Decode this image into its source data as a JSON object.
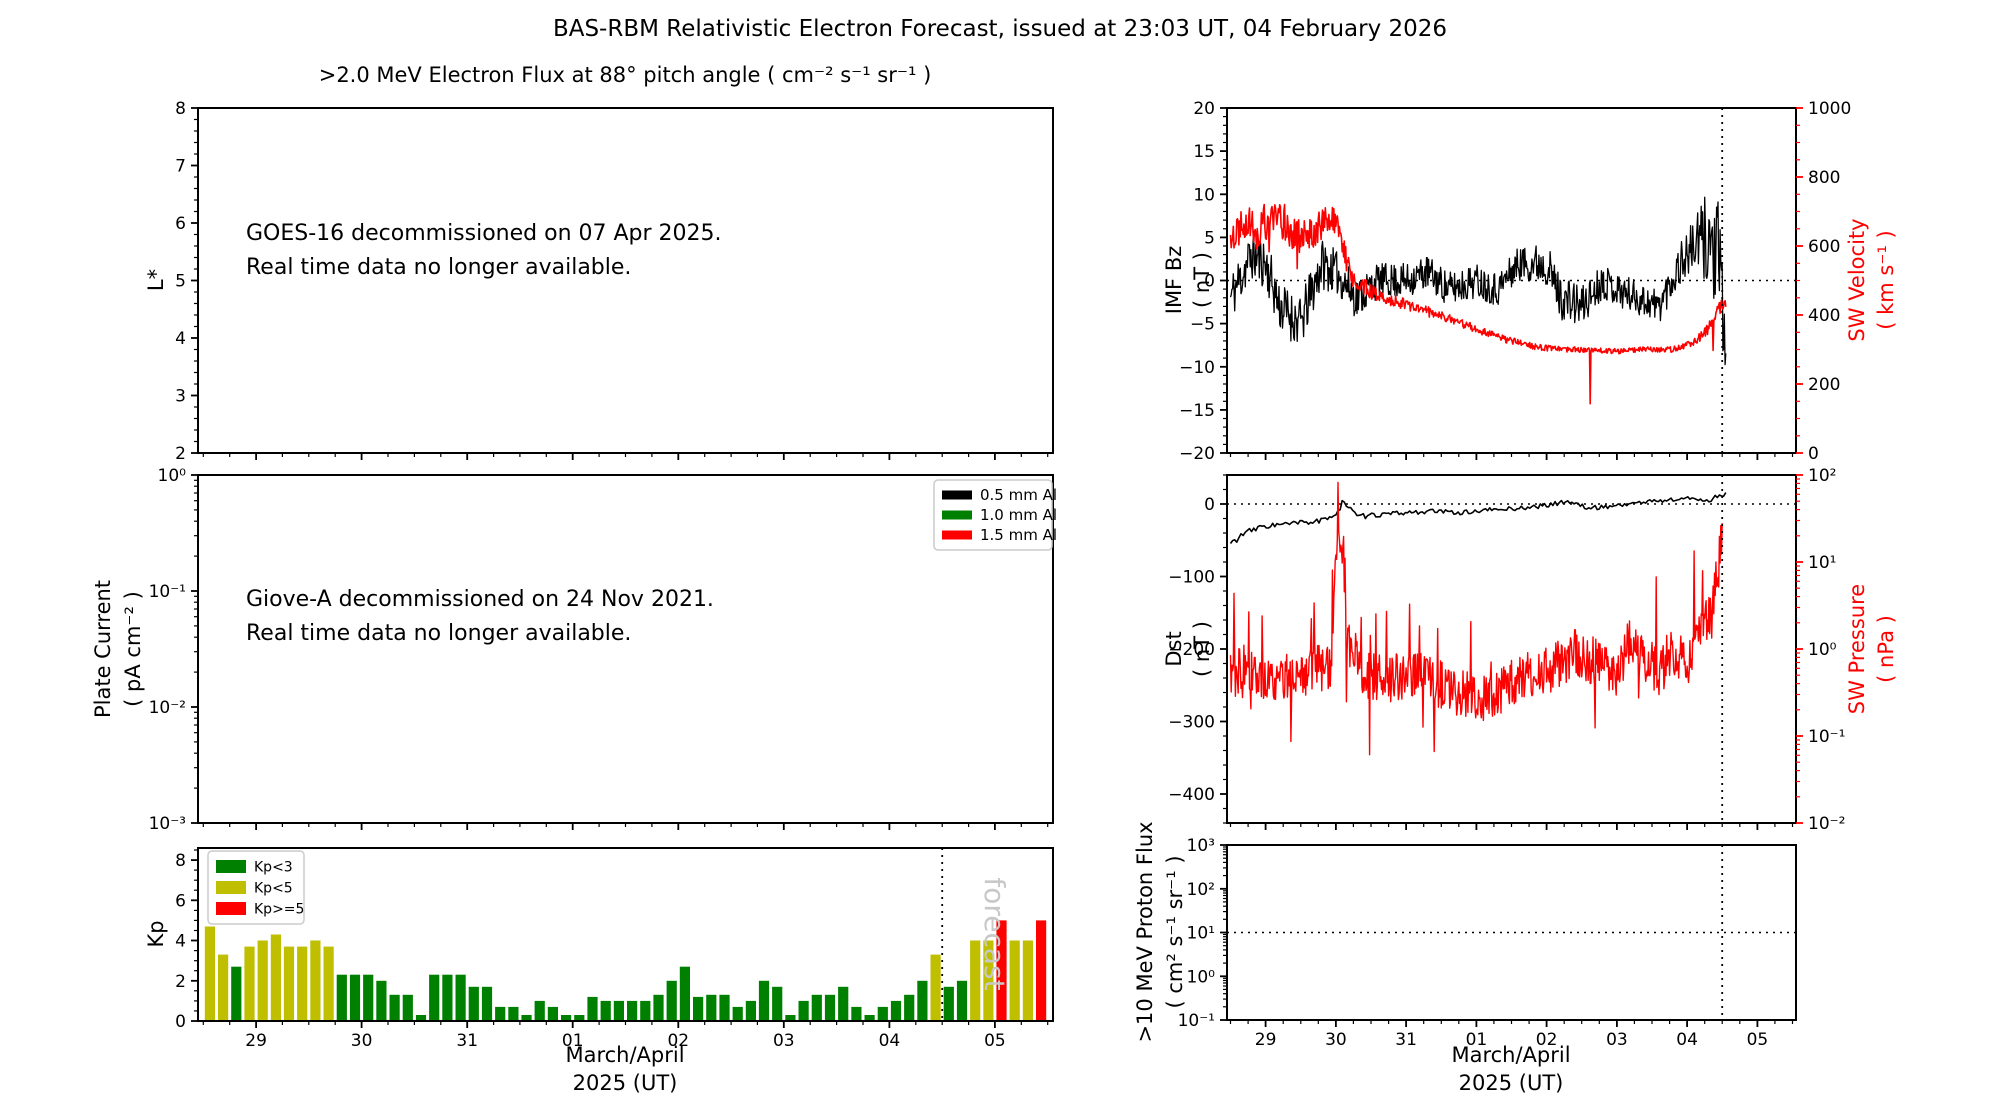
{
  "figure": {
    "title": "BAS-RBM Relativistic Electron Forecast, issued at 23:03 UT, 04 February 2026"
  },
  "colors": {
    "black": "#000000",
    "red": "#ff0000",
    "kp_green": "#008000",
    "kp_yellow": "#bfbf00",
    "kp_red": "#ff0000",
    "watermark_gray": "#c8c8c8"
  },
  "time_axis": {
    "xlim": [
      28.45,
      36.55
    ],
    "tick_values": [
      29,
      30,
      31,
      32,
      33,
      34,
      35,
      36
    ],
    "tick_labels": [
      "29",
      "30",
      "31",
      "01",
      "02",
      "03",
      "04",
      "05"
    ],
    "xlabel_line1": "March/April",
    "xlabel_line2": "2025 (UT)",
    "forecast_time": 35.5
  },
  "chart_data": [
    {
      "id": "electron-flux",
      "type": "line",
      "title": ">2.0 MeV Electron Flux at 88° pitch angle ( cm⁻² s⁻¹ sr⁻¹ )",
      "ylabel": "L*",
      "ylim": [
        2,
        8
      ],
      "yticks": {
        "values": [
          2,
          3,
          4,
          5,
          6,
          7,
          8
        ],
        "labels": [
          "2",
          "3",
          "4",
          "5",
          "6",
          "7",
          "8"
        ]
      },
      "annotation_line1": "GOES-16 decommissioned on 07 Apr 2025.",
      "annotation_line2": "Real time data no longer available.",
      "series": []
    },
    {
      "id": "plate-current",
      "type": "line",
      "ylabel_line1": "Plate Current",
      "ylabel_line2": "( pA cm⁻² )",
      "yscale": "log",
      "ylim": [
        0.001,
        1
      ],
      "yticks": {
        "values": [
          1,
          0.1,
          0.01,
          0.001
        ],
        "labels": [
          "10⁰",
          "10⁻¹",
          "10⁻²",
          "10⁻³"
        ]
      },
      "legend": [
        {
          "label": "0.5 mm Al",
          "color": "#000000"
        },
        {
          "label": "1.0 mm Al",
          "color": "#008000"
        },
        {
          "label": "1.5 mm Al",
          "color": "#ff0000"
        }
      ],
      "annotation_line1": "Giove-A decommissioned on 24 Nov 2021.",
      "annotation_line2": "Real time data no longer available.",
      "series": []
    },
    {
      "id": "kp-index",
      "type": "bar",
      "ylabel": "Kp",
      "ylim": [
        0,
        8.6
      ],
      "yticks": {
        "values": [
          0,
          2,
          4,
          6,
          8
        ],
        "labels": [
          "0",
          "2",
          "4",
          "6",
          "8"
        ]
      },
      "legend": [
        {
          "label": "Kp<3",
          "color": "#008000"
        },
        {
          "label": "Kp<5",
          "color": "#bfbf00"
        },
        {
          "label": "Kp>=5",
          "color": "#ff0000"
        }
      ],
      "thresholds": {
        "green_below": 3,
        "yellow_below": 5
      },
      "forecast_label": "forecast",
      "t_start": 28.5,
      "dt_days": 0.125,
      "values": [
        4.7,
        3.3,
        2.7,
        3.7,
        4.0,
        4.3,
        3.7,
        3.7,
        4.0,
        3.7,
        2.3,
        2.3,
        2.3,
        2.0,
        1.3,
        1.3,
        0.3,
        2.3,
        2.3,
        2.3,
        1.7,
        1.7,
        0.7,
        0.7,
        0.3,
        1.0,
        0.7,
        0.3,
        0.3,
        1.2,
        1.0,
        1.0,
        1.0,
        1.0,
        1.3,
        2.0,
        2.7,
        1.2,
        1.3,
        1.3,
        0.7,
        1.0,
        2.0,
        1.7,
        0.3,
        1.0,
        1.3,
        1.3,
        1.7,
        0.7,
        0.3,
        0.7,
        1.0,
        1.3,
        2.0,
        3.3,
        1.7,
        2.0,
        4.0,
        4.0,
        5.0,
        4.0,
        4.0,
        5.0
      ]
    },
    {
      "id": "imf-bz-sw-velocity",
      "type": "line",
      "left": {
        "label_line1": "IMF Bz",
        "label_line2": "( nT )",
        "ylim": [
          -20,
          20
        ],
        "yticks": {
          "values": [
            20,
            15,
            10,
            5,
            0,
            -5,
            -10,
            -15,
            -20
          ],
          "labels": [
            "20",
            "15",
            "10",
            "5",
            "0",
            "−5",
            "−10",
            "−15",
            "−20"
          ]
        }
      },
      "right": {
        "label_line1": "SW Velocity",
        "label_line2": "( km s⁻¹ )",
        "ylim": [
          0,
          1000
        ],
        "yticks": {
          "values": [
            1000,
            800,
            600,
            400,
            200,
            0
          ],
          "labels": [
            "1000",
            "800",
            "600",
            "400",
            "200",
            "0"
          ]
        }
      },
      "hline": 0,
      "series": [
        {
          "name": "imf-bz",
          "axis": "left",
          "color": "#000000",
          "lw": 1.3,
          "step": 0.01,
          "seed": 11,
          "t": [
            28.5,
            28.8,
            29.0,
            29.2,
            29.5,
            29.8,
            30.0,
            30.3,
            30.6,
            31.0,
            31.3,
            31.6,
            32.0,
            32.3,
            32.6,
            33.0,
            33.2,
            33.5,
            33.8,
            34.0,
            34.3,
            34.6,
            34.9,
            35.1,
            35.3,
            35.45,
            35.55
          ],
          "v": [
            -2,
            3,
            2,
            -3,
            -5,
            2,
            1,
            -2,
            0,
            0,
            1,
            -1,
            0,
            -1,
            2,
            2,
            -2,
            -3,
            0,
            -1,
            -2,
            -3,
            2,
            4,
            5,
            2,
            -8
          ],
          "noise": [
            3,
            3,
            3,
            3,
            3,
            3,
            2.5,
            2.5,
            2,
            2,
            2,
            2,
            2,
            2,
            2,
            2.5,
            2.5,
            2.5,
            2,
            2,
            2,
            2,
            2.5,
            3,
            6,
            7,
            6
          ]
        },
        {
          "name": "sw-velocity",
          "axis": "right",
          "color": "#ff0000",
          "lw": 1.6,
          "step": 0.01,
          "seed": 22,
          "spike_chance": 0.01,
          "spike_amp": 100,
          "t": [
            28.5,
            28.7,
            28.9,
            29.1,
            29.3,
            29.5,
            29.7,
            29.9,
            30.05,
            30.2,
            30.4,
            30.7,
            31.0,
            31.3,
            31.6,
            32.0,
            32.4,
            32.8,
            33.2,
            33.6,
            34.0,
            34.4,
            34.8,
            35.1,
            35.3,
            35.45,
            35.55
          ],
          "v": [
            620,
            680,
            640,
            700,
            660,
            620,
            650,
            680,
            640,
            520,
            480,
            450,
            430,
            410,
            390,
            360,
            330,
            310,
            300,
            300,
            295,
            300,
            300,
            320,
            360,
            420,
            430
          ],
          "noise": [
            50,
            55,
            55,
            60,
            55,
            50,
            50,
            55,
            45,
            30,
            25,
            20,
            15,
            15,
            12,
            12,
            10,
            10,
            8,
            8,
            8,
            8,
            8,
            10,
            15,
            20,
            20
          ]
        }
      ]
    },
    {
      "id": "dst-sw-pressure",
      "type": "line",
      "left": {
        "label_line1": "Dst",
        "label_line2": "( nT )",
        "ylim": [
          -440,
          40
        ],
        "yticks": {
          "values": [
            0,
            -100,
            -200,
            -300,
            -400
          ],
          "labels": [
            "0",
            "−100",
            "−200",
            "−300",
            "−400"
          ]
        }
      },
      "right": {
        "label_line1": "SW Pressure",
        "label_line2": "( nPa )",
        "yscale": "log",
        "ylim": [
          0.01,
          100
        ],
        "yticks": {
          "values": [
            100,
            10,
            1,
            0.1,
            0.01
          ],
          "labels": [
            "10²",
            "10¹",
            "10⁰",
            "10⁻¹",
            "10⁻²"
          ]
        }
      },
      "hline": 0,
      "series": [
        {
          "name": "dst",
          "axis": "left",
          "color": "#000000",
          "lw": 1.6,
          "step": 0.03,
          "seed": 33,
          "t": [
            28.5,
            28.7,
            29.0,
            29.3,
            29.6,
            29.9,
            30.05,
            30.1,
            30.3,
            30.6,
            31.0,
            31.4,
            31.8,
            32.2,
            32.6,
            33.0,
            33.3,
            33.6,
            34.0,
            34.4,
            34.8,
            35.1,
            35.3,
            35.45,
            35.55
          ],
          "v": [
            -55,
            -40,
            -30,
            -28,
            -25,
            -22,
            -5,
            5,
            -18,
            -15,
            -12,
            -10,
            -12,
            -8,
            -6,
            -2,
            4,
            -6,
            -2,
            3,
            6,
            8,
            4,
            12,
            15
          ],
          "noise": [
            5,
            4,
            4,
            4,
            4,
            4,
            6,
            6,
            4,
            3,
            3,
            3,
            3,
            3,
            3,
            3,
            3,
            3,
            3,
            3,
            3,
            3,
            3,
            4,
            4
          ]
        },
        {
          "name": "sw-pressure",
          "axis": "right",
          "color": "#ff0000",
          "lw": 1.4,
          "step": 0.01,
          "seed": 44,
          "log_noise": true,
          "noise_dex": 0.28,
          "spike_chance": 0.06,
          "spike_dex": 0.9,
          "t": [
            28.5,
            28.8,
            29.1,
            29.4,
            29.7,
            29.95,
            30.08,
            30.15,
            30.4,
            30.7,
            31.0,
            31.3,
            31.6,
            31.9,
            32.2,
            32.5,
            32.8,
            33.1,
            33.4,
            33.7,
            34.0,
            34.2,
            34.4,
            34.6,
            34.8,
            35.0,
            35.2,
            35.35,
            35.45,
            35.5
          ],
          "v": [
            0.55,
            0.5,
            0.45,
            0.5,
            0.55,
            0.7,
            18,
            1.2,
            0.5,
            0.45,
            0.5,
            0.45,
            0.35,
            0.3,
            0.28,
            0.4,
            0.5,
            0.6,
            0.9,
            0.7,
            0.5,
            1.2,
            0.8,
            0.5,
            0.9,
            0.7,
            1.5,
            2.5,
            8,
            20
          ]
        }
      ]
    },
    {
      "id": "proton-flux",
      "type": "line",
      "ylabel_line1": ">10 MeV Proton Flux",
      "ylabel_line2": "( cm² s⁻¹ sr⁻¹ )",
      "yscale": "log",
      "ylim": [
        0.1,
        1000
      ],
      "yticks": {
        "values": [
          1000,
          100,
          10,
          1,
          0.1
        ],
        "labels": [
          "10³",
          "10²",
          "10¹",
          "10⁰",
          "10⁻¹"
        ]
      },
      "hline": 10,
      "series": []
    }
  ]
}
